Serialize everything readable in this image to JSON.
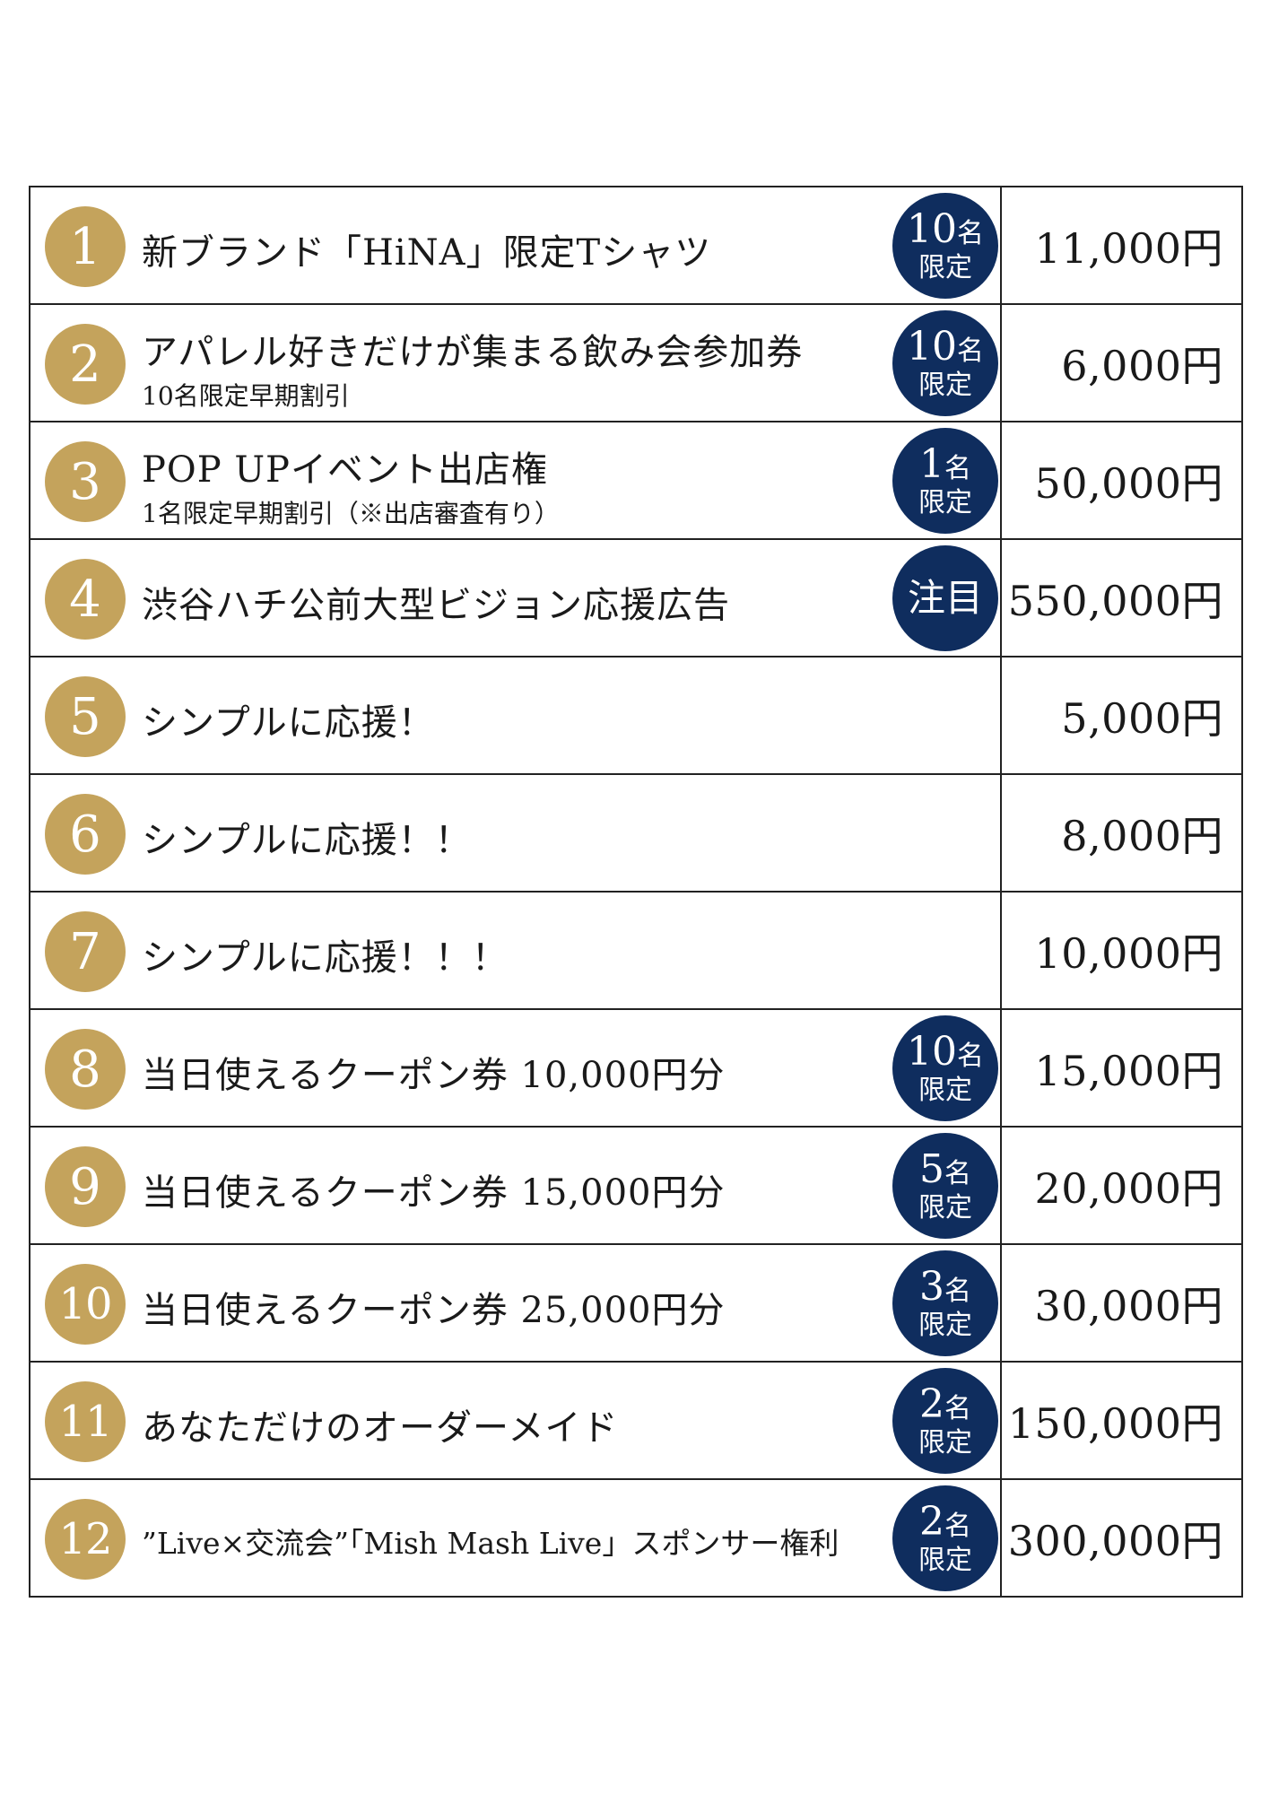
{
  "items": [
    {
      "number": "1",
      "title": "新ブランド「HiNA」限定Tシャツ",
      "subtitle": "",
      "badge_count": "10",
      "badge_unit": "名",
      "badge_label": "限定",
      "price": "11,000円"
    },
    {
      "number": "2",
      "title": "アパレル好きだけが集まる飲み会参加券",
      "subtitle": "10名限定早期割引",
      "badge_count": "10",
      "badge_unit": "名",
      "badge_label": "限定",
      "price": "6,000円"
    },
    {
      "number": "3",
      "title": "POP UPイベント出店権",
      "subtitle": "1名限定早期割引（※出店審査有り）",
      "badge_count": "1",
      "badge_unit": "名",
      "badge_label": "限定",
      "price": "50,000円"
    },
    {
      "number": "4",
      "title": "渋谷ハチ公前大型ビジョン応援広告",
      "subtitle": "",
      "badge_text": "注目",
      "price": "550,000円"
    },
    {
      "number": "5",
      "title": "シンプルに応援！",
      "subtitle": "",
      "price": "5,000円"
    },
    {
      "number": "6",
      "title": "シンプルに応援！！",
      "subtitle": "",
      "price": "8,000円"
    },
    {
      "number": "7",
      "title": "シンプルに応援！！！",
      "subtitle": "",
      "price": "10,000円"
    },
    {
      "number": "8",
      "title": "当日使えるクーポン券 10,000円分",
      "subtitle": "",
      "badge_count": "10",
      "badge_unit": "名",
      "badge_label": "限定",
      "price": "15,000円"
    },
    {
      "number": "9",
      "title": "当日使えるクーポン券 15,000円分",
      "subtitle": "",
      "badge_count": "5",
      "badge_unit": "名",
      "badge_label": "限定",
      "price": "20,000円"
    },
    {
      "number": "10",
      "title": "当日使えるクーポン券 25,000円分",
      "subtitle": "",
      "badge_count": "3",
      "badge_unit": "名",
      "badge_label": "限定",
      "price": "30,000円"
    },
    {
      "number": "11",
      "title": "あなただけのオーダーメイド",
      "subtitle": "",
      "badge_count": "2",
      "badge_unit": "名",
      "badge_label": "限定",
      "price": "150,000円"
    },
    {
      "number": "12",
      "title": "”Live×交流会”「Mish Mash Live」スポンサー権利",
      "subtitle": "",
      "badge_count": "2",
      "badge_unit": "名",
      "badge_label": "限定",
      "price": "300,000円"
    }
  ],
  "colors": {
    "number_circle": "#c4a35c",
    "badge": "#0f2d5e",
    "border": "#222222"
  }
}
